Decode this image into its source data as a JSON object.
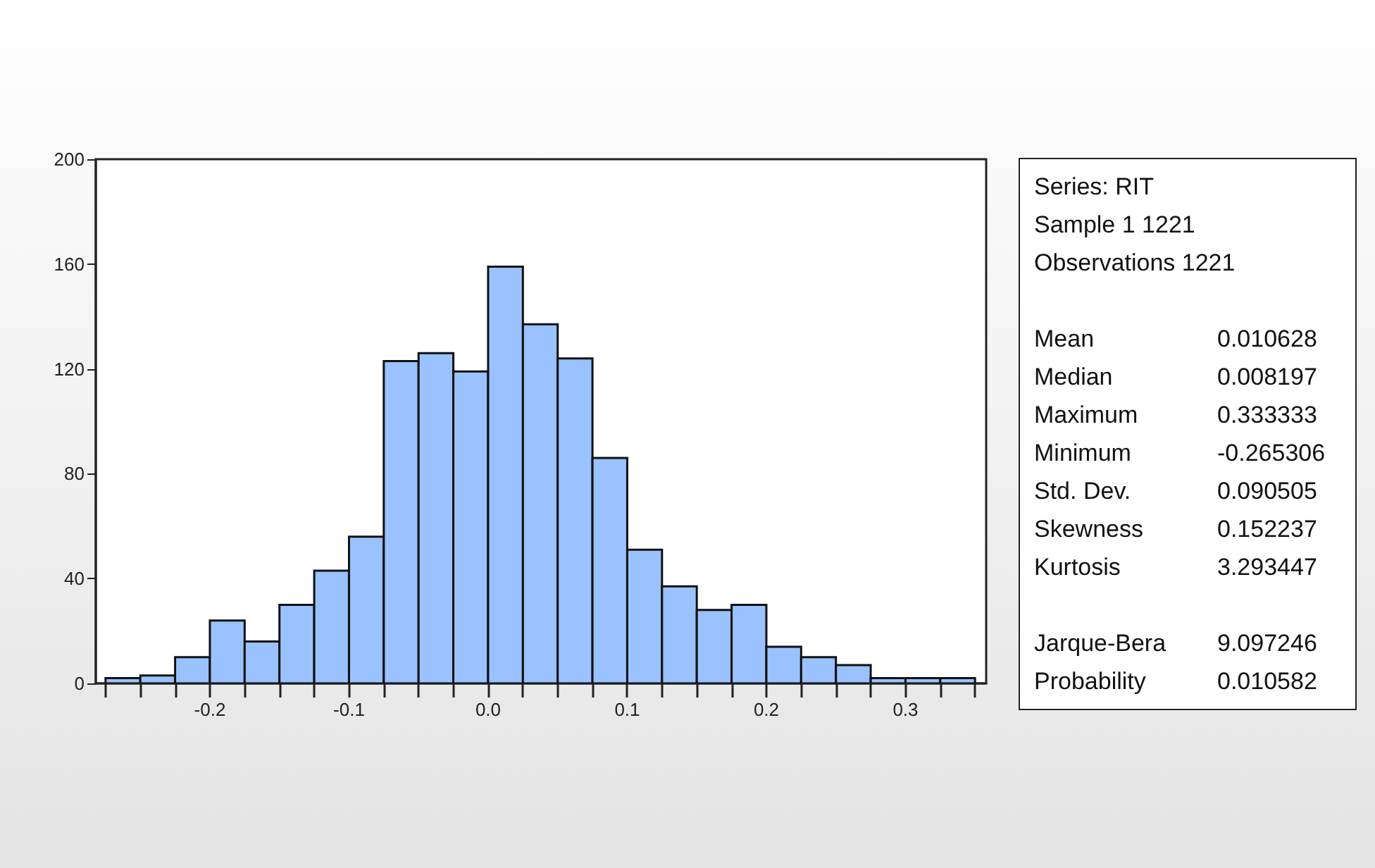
{
  "chart_data": {
    "type": "histogram",
    "bins": [
      -0.275,
      -0.25,
      -0.225,
      -0.2,
      -0.175,
      -0.15,
      -0.125,
      -0.1,
      -0.075,
      -0.05,
      -0.025,
      0,
      0.025,
      0.05,
      0.075,
      0.1,
      0.125,
      0.15,
      0.175,
      0.2,
      0.225,
      0.25,
      0.275,
      0.3,
      0.325,
      0.35
    ],
    "values": [
      2,
      3,
      10,
      24,
      16,
      30,
      43,
      56,
      123,
      126,
      119,
      159,
      137,
      124,
      86,
      51,
      37,
      28,
      30,
      14,
      10,
      7,
      2,
      2,
      2
    ],
    "color": "#99c2ff",
    "xlim": [
      -0.282,
      0.358
    ],
    "xticks": [
      {
        "value": -0.275,
        "label": null
      },
      {
        "value": -0.25,
        "label": null
      },
      {
        "value": -0.225,
        "label": null
      },
      -0.2,
      {
        "value": -0.175,
        "label": null
      },
      {
        "value": -0.15,
        "label": null
      },
      {
        "value": -0.125,
        "label": null
      },
      -0.1,
      {
        "value": -0.075,
        "label": null
      },
      {
        "value": -0.05,
        "label": null
      },
      {
        "value": -0.025,
        "label": null
      },
      {
        "value": 0,
        "label": "0.0"
      },
      {
        "value": 0.025,
        "label": null
      },
      {
        "value": 0.05,
        "label": null
      },
      {
        "value": 0.075,
        "label": null
      },
      0.1,
      {
        "value": 0.125,
        "label": null
      },
      {
        "value": 0.15,
        "label": null
      },
      {
        "value": 0.175,
        "label": null
      },
      0.2,
      {
        "value": 0.225,
        "label": null
      },
      {
        "value": 0.25,
        "label": null
      },
      {
        "value": 0.275,
        "label": null
      },
      0.3,
      {
        "value": 0.325,
        "label": null
      },
      {
        "value": 0.35,
        "label": null
      }
    ],
    "ylim": [
      0,
      200
    ],
    "yticks": [
      0,
      40,
      80,
      120,
      160,
      200
    ],
    "grid": false,
    "annotations": [
      "Series: RIT",
      "Sample 1 1221",
      "Observations 1221",
      "Mean 0.010628",
      "Median 0.008197",
      "Maximum 0.333333",
      "Minimum -0.265306",
      "Std. Dev. 0.090505",
      "Skewness 0.152237",
      "Kurtosis 3.293447",
      "Jarque-Bera 9.097246",
      "Probability 0.010582"
    ]
  }
}
